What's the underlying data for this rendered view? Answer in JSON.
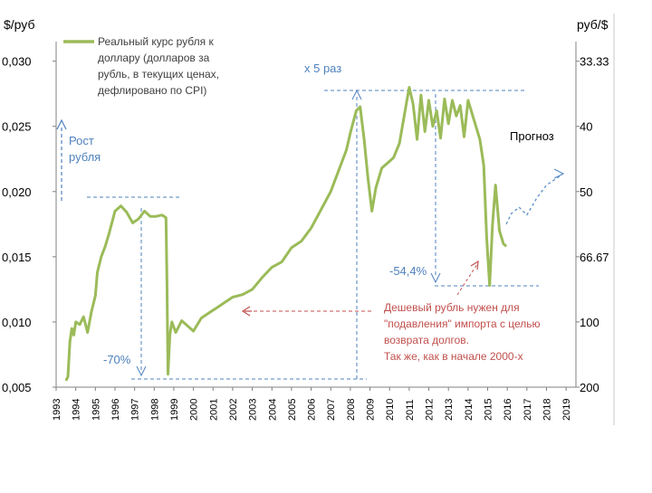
{
  "chart_data": {
    "type": "line",
    "left_axis_title": "$/руб",
    "right_axis_title": "руб/$",
    "legend_label_lines": [
      "Реальный курс рубля к",
      "доллару (долларов за",
      "рубль, в текущих ценах,",
      "дефлировано по CPI)"
    ],
    "left_ticks": [
      "0,005",
      "0,010",
      "0,015",
      "0,020",
      "0,025",
      "0,030"
    ],
    "left_tick_values": [
      0.005,
      0.01,
      0.015,
      0.02,
      0.025,
      0.03
    ],
    "right_ticks": [
      "200",
      "100",
      "66.67",
      "50",
      "40",
      "33.33"
    ],
    "x_ticks": [
      "1993",
      "1994",
      "1995",
      "1996",
      "1997",
      "1998",
      "1999",
      "2000",
      "2001",
      "2002",
      "2003",
      "2004",
      "2005",
      "2006",
      "2007",
      "2008",
      "2009",
      "2010",
      "2011",
      "2012",
      "2013",
      "2014",
      "2015",
      "2016",
      "2017",
      "2018",
      "2019"
    ],
    "xlim": [
      1993,
      2019.5
    ],
    "ylim": [
      0.005,
      0.0315
    ],
    "grid": false,
    "legend_position": "top-left",
    "series": [
      {
        "name": "Реальный курс рубля к доллару (долларов за рубль, в текущих ценах, дефлировано по CPI)",
        "color": "#9bbb59",
        "x": [
          1993.5,
          1993.6,
          1993.7,
          1993.8,
          1993.9,
          1994.0,
          1994.2,
          1994.4,
          1994.6,
          1994.8,
          1995.0,
          1995.1,
          1995.3,
          1995.5,
          1995.7,
          1996.0,
          1996.3,
          1996.6,
          1996.9,
          1997.2,
          1997.5,
          1997.8,
          1998.1,
          1998.4,
          1998.6,
          1998.65,
          1998.7,
          1998.8,
          1998.9,
          1999.1,
          1999.4,
          1999.7,
          2000.0,
          2000.4,
          2000.8,
          2001.2,
          2001.6,
          2002.0,
          2002.5,
          2003.0,
          2003.5,
          2004.0,
          2004.5,
          2005.0,
          2005.5,
          2006.0,
          2006.5,
          2007.0,
          2007.5,
          2007.8,
          2008.0,
          2008.3,
          2008.5,
          2008.7,
          2008.9,
          2009.1,
          2009.3,
          2009.6,
          2009.9,
          2010.2,
          2010.5,
          2010.8,
          2011.0,
          2011.2,
          2011.4,
          2011.6,
          2011.8,
          2012.0,
          2012.2,
          2012.4,
          2012.6,
          2012.8,
          2013.0,
          2013.2,
          2013.4,
          2013.6,
          2013.8,
          2014.0,
          2014.3,
          2014.6,
          2014.8,
          2014.95,
          2015.1,
          2015.25,
          2015.4,
          2015.6,
          2015.8,
          2015.95
        ],
        "values": [
          0.0055,
          0.0058,
          0.0085,
          0.0095,
          0.009,
          0.01,
          0.0098,
          0.0104,
          0.0092,
          0.0108,
          0.012,
          0.0138,
          0.015,
          0.0158,
          0.0168,
          0.0185,
          0.0189,
          0.0184,
          0.0176,
          0.0179,
          0.0185,
          0.0181,
          0.0181,
          0.0182,
          0.018,
          0.013,
          0.006,
          0.009,
          0.01,
          0.0092,
          0.0101,
          0.0097,
          0.0093,
          0.0103,
          0.0107,
          0.0111,
          0.0115,
          0.0119,
          0.0121,
          0.0125,
          0.0134,
          0.0142,
          0.0146,
          0.0157,
          0.0162,
          0.0172,
          0.0186,
          0.02,
          0.022,
          0.0232,
          0.0245,
          0.0262,
          0.0265,
          0.024,
          0.021,
          0.0185,
          0.0203,
          0.0218,
          0.0222,
          0.0226,
          0.0237,
          0.0263,
          0.028,
          0.0267,
          0.024,
          0.0274,
          0.0246,
          0.027,
          0.025,
          0.0262,
          0.0241,
          0.0271,
          0.0252,
          0.027,
          0.0258,
          0.0266,
          0.0242,
          0.027,
          0.0255,
          0.024,
          0.022,
          0.0165,
          0.0128,
          0.0175,
          0.0205,
          0.017,
          0.016,
          0.0158
        ]
      },
      {
        "name": "Прогноз",
        "color": "#5b8ec9",
        "dashed": true,
        "x": [
          2015.95,
          2016.2,
          2016.6,
          2017.0,
          2017.5,
          2018.0,
          2018.8
        ],
        "values": [
          0.0175,
          0.0183,
          0.0188,
          0.0182,
          0.0195,
          0.0205,
          0.0213
        ]
      }
    ],
    "annotations": {
      "rost": [
        "Рост",
        "рубля"
      ],
      "x5": "x 5 раз",
      "forecast": "Прогноз",
      "minus54": "-54,4%",
      "minus70": "-70%",
      "note": [
        "Дешевый рубль нужен для",
        "\"подавления\" импорта с целью",
        "возврата долгов.",
        "Так же, как в начале 2000-х"
      ]
    },
    "colors": {
      "line": "#9bbb59",
      "guide": "#4f81bd",
      "note": "#c0504d",
      "axis": "#808080"
    }
  }
}
